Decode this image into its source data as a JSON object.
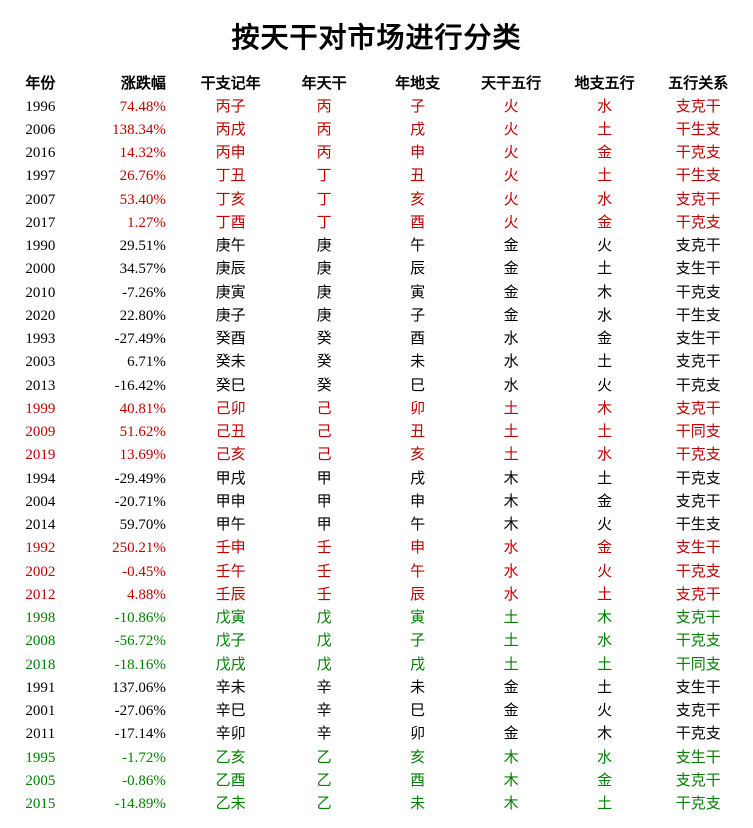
{
  "title": "按天干对市场进行分类",
  "colors": {
    "black": "#000000",
    "red": "#c00000",
    "green": "#008000",
    "background": "#ffffff"
  },
  "typography": {
    "title_fontsize": 28,
    "header_fontsize": 15,
    "cell_fontsize": 15
  },
  "table": {
    "columns": [
      "年份",
      "涨跌幅",
      "干支记年",
      "年天干",
      "年地支",
      "天干五行",
      "地支五行",
      "五行关系"
    ],
    "column_widths_pct": [
      9,
      13,
      13,
      13,
      13,
      13,
      13,
      13
    ],
    "rows": [
      {
        "year": "1996",
        "change": "74.48%",
        "ganzhi": "丙子",
        "gan": "丙",
        "zhi": "子",
        "ganwx": "火",
        "zhiwx": "水",
        "rel": "支克干",
        "yc": "black",
        "cc": "red",
        "gc": "red",
        "rc": "red"
      },
      {
        "year": "2006",
        "change": "138.34%",
        "ganzhi": "丙戌",
        "gan": "丙",
        "zhi": "戌",
        "ganwx": "火",
        "zhiwx": "土",
        "rel": "干生支",
        "yc": "black",
        "cc": "red",
        "gc": "red",
        "rc": "red"
      },
      {
        "year": "2016",
        "change": "14.32%",
        "ganzhi": "丙申",
        "gan": "丙",
        "zhi": "申",
        "ganwx": "火",
        "zhiwx": "金",
        "rel": "干克支",
        "yc": "black",
        "cc": "red",
        "gc": "red",
        "rc": "red"
      },
      {
        "year": "1997",
        "change": "26.76%",
        "ganzhi": "丁丑",
        "gan": "丁",
        "zhi": "丑",
        "ganwx": "火",
        "zhiwx": "土",
        "rel": "干生支",
        "yc": "black",
        "cc": "red",
        "gc": "red",
        "rc": "red"
      },
      {
        "year": "2007",
        "change": "53.40%",
        "ganzhi": "丁亥",
        "gan": "丁",
        "zhi": "亥",
        "ganwx": "火",
        "zhiwx": "水",
        "rel": "支克干",
        "yc": "black",
        "cc": "red",
        "gc": "red",
        "rc": "red"
      },
      {
        "year": "2017",
        "change": "1.27%",
        "ganzhi": "丁酉",
        "gan": "丁",
        "zhi": "酉",
        "ganwx": "火",
        "zhiwx": "金",
        "rel": "干克支",
        "yc": "black",
        "cc": "red",
        "gc": "red",
        "rc": "red"
      },
      {
        "year": "1990",
        "change": "29.51%",
        "ganzhi": "庚午",
        "gan": "庚",
        "zhi": "午",
        "ganwx": "金",
        "zhiwx": "火",
        "rel": "支克干",
        "yc": "black",
        "cc": "black",
        "gc": "black",
        "rc": "black"
      },
      {
        "year": "2000",
        "change": "34.57%",
        "ganzhi": "庚辰",
        "gan": "庚",
        "zhi": "辰",
        "ganwx": "金",
        "zhiwx": "土",
        "rel": "支生干",
        "yc": "black",
        "cc": "black",
        "gc": "black",
        "rc": "black"
      },
      {
        "year": "2010",
        "change": "-7.26%",
        "ganzhi": "庚寅",
        "gan": "庚",
        "zhi": "寅",
        "ganwx": "金",
        "zhiwx": "木",
        "rel": "干克支",
        "yc": "black",
        "cc": "black",
        "gc": "black",
        "rc": "black"
      },
      {
        "year": "2020",
        "change": "22.80%",
        "ganzhi": "庚子",
        "gan": "庚",
        "zhi": "子",
        "ganwx": "金",
        "zhiwx": "水",
        "rel": "干生支",
        "yc": "black",
        "cc": "black",
        "gc": "black",
        "rc": "black"
      },
      {
        "year": "1993",
        "change": "-27.49%",
        "ganzhi": "癸酉",
        "gan": "癸",
        "zhi": "酉",
        "ganwx": "水",
        "zhiwx": "金",
        "rel": "支生干",
        "yc": "black",
        "cc": "black",
        "gc": "black",
        "rc": "black"
      },
      {
        "year": "2003",
        "change": "6.71%",
        "ganzhi": "癸未",
        "gan": "癸",
        "zhi": "未",
        "ganwx": "水",
        "zhiwx": "土",
        "rel": "支克干",
        "yc": "black",
        "cc": "black",
        "gc": "black",
        "rc": "black"
      },
      {
        "year": "2013",
        "change": "-16.42%",
        "ganzhi": "癸巳",
        "gan": "癸",
        "zhi": "巳",
        "ganwx": "水",
        "zhiwx": "火",
        "rel": "干克支",
        "yc": "black",
        "cc": "black",
        "gc": "black",
        "rc": "black"
      },
      {
        "year": "1999",
        "change": "40.81%",
        "ganzhi": "己卯",
        "gan": "己",
        "zhi": "卯",
        "ganwx": "土",
        "zhiwx": "木",
        "rel": "支克干",
        "yc": "red",
        "cc": "red",
        "gc": "red",
        "rc": "red"
      },
      {
        "year": "2009",
        "change": "51.62%",
        "ganzhi": "己丑",
        "gan": "己",
        "zhi": "丑",
        "ganwx": "土",
        "zhiwx": "土",
        "rel": "干同支",
        "yc": "red",
        "cc": "red",
        "gc": "red",
        "rc": "red"
      },
      {
        "year": "2019",
        "change": "13.69%",
        "ganzhi": "己亥",
        "gan": "己",
        "zhi": "亥",
        "ganwx": "土",
        "zhiwx": "水",
        "rel": "干克支",
        "yc": "red",
        "cc": "red",
        "gc": "red",
        "rc": "red"
      },
      {
        "year": "1994",
        "change": "-29.49%",
        "ganzhi": "甲戌",
        "gan": "甲",
        "zhi": "戌",
        "ganwx": "木",
        "zhiwx": "土",
        "rel": "干克支",
        "yc": "black",
        "cc": "black",
        "gc": "black",
        "rc": "black"
      },
      {
        "year": "2004",
        "change": "-20.71%",
        "ganzhi": "甲申",
        "gan": "甲",
        "zhi": "申",
        "ganwx": "木",
        "zhiwx": "金",
        "rel": "支克干",
        "yc": "black",
        "cc": "black",
        "gc": "black",
        "rc": "black"
      },
      {
        "year": "2014",
        "change": "59.70%",
        "ganzhi": "甲午",
        "gan": "甲",
        "zhi": "午",
        "ganwx": "木",
        "zhiwx": "火",
        "rel": "干生支",
        "yc": "black",
        "cc": "black",
        "gc": "black",
        "rc": "black"
      },
      {
        "year": "1992",
        "change": "250.21%",
        "ganzhi": "壬申",
        "gan": "壬",
        "zhi": "申",
        "ganwx": "水",
        "zhiwx": "金",
        "rel": "支生干",
        "yc": "red",
        "cc": "red",
        "gc": "red",
        "rc": "red"
      },
      {
        "year": "2002",
        "change": "-0.45%",
        "ganzhi": "壬午",
        "gan": "壬",
        "zhi": "午",
        "ganwx": "水",
        "zhiwx": "火",
        "rel": "干克支",
        "yc": "red",
        "cc": "red",
        "gc": "red",
        "rc": "red"
      },
      {
        "year": "2012",
        "change": "4.88%",
        "ganzhi": "壬辰",
        "gan": "壬",
        "zhi": "辰",
        "ganwx": "水",
        "zhiwx": "土",
        "rel": "支克干",
        "yc": "red",
        "cc": "red",
        "gc": "red",
        "rc": "red"
      },
      {
        "year": "1998",
        "change": "-10.86%",
        "ganzhi": "戊寅",
        "gan": "戊",
        "zhi": "寅",
        "ganwx": "土",
        "zhiwx": "木",
        "rel": "支克干",
        "yc": "green",
        "cc": "green",
        "gc": "green",
        "rc": "green"
      },
      {
        "year": "2008",
        "change": "-56.72%",
        "ganzhi": "戊子",
        "gan": "戊",
        "zhi": "子",
        "ganwx": "土",
        "zhiwx": "水",
        "rel": "干克支",
        "yc": "green",
        "cc": "green",
        "gc": "green",
        "rc": "green"
      },
      {
        "year": "2018",
        "change": "-18.16%",
        "ganzhi": "戊戌",
        "gan": "戊",
        "zhi": "戌",
        "ganwx": "土",
        "zhiwx": "土",
        "rel": "干同支",
        "yc": "green",
        "cc": "green",
        "gc": "green",
        "rc": "green"
      },
      {
        "year": "1991",
        "change": "137.06%",
        "ganzhi": "辛未",
        "gan": "辛",
        "zhi": "未",
        "ganwx": "金",
        "zhiwx": "土",
        "rel": "支生干",
        "yc": "black",
        "cc": "black",
        "gc": "black",
        "rc": "black"
      },
      {
        "year": "2001",
        "change": "-27.06%",
        "ganzhi": "辛巳",
        "gan": "辛",
        "zhi": "巳",
        "ganwx": "金",
        "zhiwx": "火",
        "rel": "支克干",
        "yc": "black",
        "cc": "black",
        "gc": "black",
        "rc": "black"
      },
      {
        "year": "2011",
        "change": "-17.14%",
        "ganzhi": "辛卯",
        "gan": "辛",
        "zhi": "卯",
        "ganwx": "金",
        "zhiwx": "木",
        "rel": "干克支",
        "yc": "black",
        "cc": "black",
        "gc": "black",
        "rc": "black"
      },
      {
        "year": "1995",
        "change": "-1.72%",
        "ganzhi": "乙亥",
        "gan": "乙",
        "zhi": "亥",
        "ganwx": "木",
        "zhiwx": "水",
        "rel": "支生干",
        "yc": "green",
        "cc": "green",
        "gc": "green",
        "rc": "green"
      },
      {
        "year": "2005",
        "change": "-0.86%",
        "ganzhi": "乙酉",
        "gan": "乙",
        "zhi": "酉",
        "ganwx": "木",
        "zhiwx": "金",
        "rel": "支克干",
        "yc": "green",
        "cc": "green",
        "gc": "green",
        "rc": "green"
      },
      {
        "year": "2015",
        "change": "-14.89%",
        "ganzhi": "乙未",
        "gan": "乙",
        "zhi": "未",
        "ganwx": "木",
        "zhiwx": "土",
        "rel": "干克支",
        "yc": "green",
        "cc": "green",
        "gc": "green",
        "rc": "green"
      }
    ]
  }
}
